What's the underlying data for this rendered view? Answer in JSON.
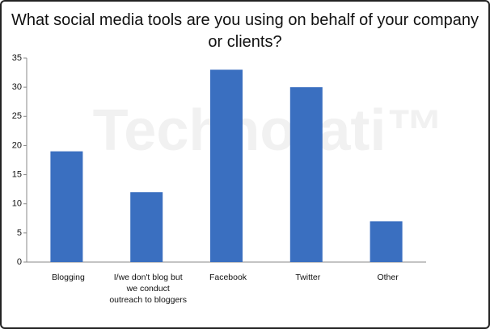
{
  "chart_data": {
    "type": "bar",
    "title": "What social media tools are you using on behalf of your company or clients?",
    "watermark": "Technorati™",
    "categories": [
      "Blogging",
      "I/we don't blog but we conduct outreach to bloggers",
      "Facebook",
      "Twitter",
      "Other"
    ],
    "values": [
      19,
      12,
      33,
      30,
      7
    ],
    "color": "#3a6fc0",
    "ylim": [
      0,
      35
    ],
    "yticks": [
      0,
      5,
      10,
      15,
      20,
      25,
      30,
      35
    ],
    "grid": false
  }
}
